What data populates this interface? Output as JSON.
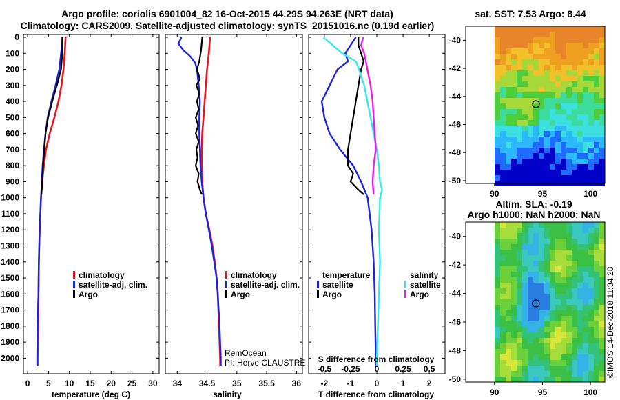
{
  "header": {
    "line1": "Argo profile: coriolis 6901004_82 16-Oct-2015 44.29S 94.263E (NRT data)",
    "line2": "Climatology: CARS2009. Satellite-adjusted climatology: synTS_20151016.nc (0.19d earlier)"
  },
  "depth_axis": {
    "ticks": [
      "0",
      "100",
      "200",
      "300",
      "400",
      "500",
      "600",
      "700",
      "800",
      "900",
      "1000",
      "1100",
      "1200",
      "1300",
      "1400",
      "1500",
      "1600",
      "1700",
      "1800",
      "1900",
      "2000"
    ],
    "ylim": [
      0,
      2080
    ]
  },
  "colors": {
    "climatology": "#e8141b",
    "satellite": "#1b24d8",
    "argo": "#000000",
    "sat_salinity": "#35e8ee",
    "argo_salinity": "#e81be8"
  },
  "chart_data": [
    {
      "id": "temperature",
      "type": "line",
      "xlabel": "temperature (deg C)",
      "xlim": [
        -1,
        31.5
      ],
      "xticks": [
        "0",
        "5",
        "10",
        "15",
        "20",
        "25",
        "30"
      ],
      "legend": [
        "climatology",
        "satellite-adj. clim.",
        "Argo"
      ],
      "series": [
        {
          "name": "climatology",
          "depth": [
            0,
            50,
            100,
            200,
            300,
            400,
            500,
            600,
            700,
            800,
            900,
            1000,
            1200,
            1400,
            1600,
            1800,
            2000,
            2050
          ],
          "values": [
            9.1,
            9.0,
            8.9,
            8.6,
            8.1,
            7.4,
            6.4,
            5.3,
            4.4,
            3.9,
            3.5,
            3.2,
            2.9,
            2.7,
            2.6,
            2.5,
            2.4,
            2.4
          ]
        },
        {
          "name": "satellite-adj. clim.",
          "depth": [
            0,
            50,
            100,
            200,
            300,
            400,
            500,
            600,
            700,
            800,
            900,
            1000,
            1200,
            1400,
            1600,
            1800,
            2000,
            2050
          ],
          "values": [
            8.3,
            8.2,
            8.0,
            7.6,
            6.7,
            5.7,
            4.8,
            4.3,
            3.9,
            3.6,
            3.4,
            3.2,
            2.9,
            2.7,
            2.6,
            2.4,
            2.3,
            2.3
          ]
        },
        {
          "name": "Argo",
          "depth": [
            0,
            50,
            100,
            200,
            300,
            400,
            500,
            600,
            700,
            800,
            900,
            980
          ],
          "values": [
            8.4,
            8.3,
            8.3,
            8.0,
            7.0,
            5.9,
            4.9,
            4.3,
            4.0,
            3.7,
            3.5,
            3.3
          ]
        }
      ]
    },
    {
      "id": "salinity",
      "type": "line",
      "xlabel": "salinity",
      "xlim": [
        33.8,
        36.1
      ],
      "xticks": [
        "34",
        "34.5",
        "35",
        "35.5",
        "36"
      ],
      "legend": [
        "climatology",
        "satellite-adj. clim.",
        "Argo"
      ],
      "series": [
        {
          "name": "climatology",
          "depth": [
            0,
            100,
            200,
            300,
            400,
            500,
            600,
            700,
            800,
            900,
            1000,
            1100,
            1200,
            1300,
            1400,
            1500,
            1600,
            1800,
            2000,
            2050
          ],
          "values": [
            34.55,
            34.53,
            34.5,
            34.48,
            34.46,
            34.44,
            34.42,
            34.41,
            34.41,
            34.42,
            34.44,
            34.48,
            34.54,
            34.59,
            34.63,
            34.66,
            34.68,
            34.7,
            34.72,
            34.72
          ]
        },
        {
          "name": "satellite-adj. clim.",
          "depth": [
            0,
            40,
            80,
            120,
            160,
            200,
            300,
            400,
            500,
            600,
            700,
            800,
            900,
            1000,
            1100,
            1200,
            1300,
            1400,
            1500,
            1600,
            1800,
            2000,
            2050
          ],
          "values": [
            34.07,
            34.02,
            34.1,
            34.22,
            34.3,
            34.33,
            34.36,
            34.38,
            34.37,
            34.37,
            34.38,
            34.39,
            34.41,
            34.44,
            34.48,
            34.53,
            34.58,
            34.62,
            34.66,
            34.68,
            34.71,
            34.73,
            34.73
          ]
        },
        {
          "name": "Argo",
          "depth": [
            0,
            80,
            150,
            200,
            260,
            300,
            350,
            400,
            450,
            500,
            550,
            600,
            650,
            700,
            750,
            800,
            850,
            900,
            950,
            980
          ],
          "values": [
            34.42,
            34.4,
            34.37,
            34.33,
            34.38,
            34.32,
            34.37,
            34.33,
            34.36,
            34.31,
            34.35,
            34.31,
            34.36,
            34.32,
            34.34,
            34.31,
            34.36,
            34.34,
            34.38,
            34.41
          ]
        }
      ]
    },
    {
      "id": "difference",
      "type": "line",
      "xlabel": "T difference from climatology",
      "xlabel_top": "S difference from climatology",
      "xlim": [
        -2.6,
        2.6
      ],
      "xticks": [
        "-2",
        "-1",
        "0",
        "1",
        "2"
      ],
      "xticks_top": [
        "-0.5",
        "-0.25",
        "0",
        "0.25",
        "0.5"
      ],
      "legend": {
        "temperature": [
          "satellite",
          "Argo"
        ],
        "salinity": [
          "satellite",
          "Argo"
        ]
      },
      "legend_titles": [
        "temperature",
        "salinity"
      ],
      "series": [
        {
          "name": "temperature satellite",
          "depth": [
            0,
            50,
            100,
            150,
            200,
            300,
            400,
            500,
            600,
            700,
            800,
            900,
            1000,
            1200,
            1400,
            1600,
            1800,
            2000,
            2050
          ],
          "values": [
            -0.8,
            -1.0,
            -1.2,
            -1.1,
            -1.5,
            -1.8,
            -2.1,
            -2.0,
            -1.8,
            -1.4,
            -0.9,
            -0.6,
            -0.35,
            -0.2,
            -0.12,
            -0.08,
            -0.06,
            -0.04,
            -0.04
          ]
        },
        {
          "name": "temperature Argo",
          "depth": [
            0,
            50,
            100,
            150,
            200,
            300,
            400,
            500,
            600,
            700,
            800,
            850,
            900,
            950,
            980
          ],
          "values": [
            -0.7,
            -0.7,
            -0.6,
            -0.5,
            -0.6,
            -0.7,
            -0.8,
            -0.9,
            -1.0,
            -1.1,
            -1.1,
            -0.9,
            -1.0,
            -0.7,
            -0.5
          ]
        },
        {
          "name": "salinity satellite",
          "depth": [
            0,
            50,
            100,
            150,
            200,
            300,
            400,
            500,
            600,
            700,
            800,
            900,
            950,
            1000,
            1200,
            1400,
            1600,
            1800,
            2000,
            2050
          ],
          "values": [
            -0.51,
            -0.42,
            -0.33,
            -0.2,
            -0.17,
            -0.12,
            -0.09,
            -0.06,
            -0.03,
            0.0,
            0.02,
            0.03,
            0.05,
            0.03,
            0.02,
            0.03,
            0.02,
            0.01,
            0.0,
            0.0
          ]
        },
        {
          "name": "salinity Argo",
          "depth": [
            0,
            50,
            100,
            200,
            300,
            400,
            500,
            600,
            700,
            800,
            900,
            980
          ],
          "values": [
            -0.13,
            -0.15,
            -0.12,
            -0.09,
            -0.06,
            -0.04,
            -0.03,
            -0.02,
            -0.01,
            -0.03,
            -0.04,
            -0.03
          ]
        }
      ]
    }
  ],
  "sst_map": {
    "title": "sat. SST: 7.53 Argo: 8.44",
    "yticks": [
      "-40",
      "-42",
      "-44",
      "-46",
      "-48",
      "-50"
    ],
    "xticks": [
      "90",
      "95",
      "100"
    ],
    "marker": {
      "lon": 94.263,
      "lat": -44.29
    }
  },
  "sla_map": {
    "title1": "Altim. SLA: -0.19",
    "title2": "Argo h1000: NaN h2000: NaN",
    "yticks": [
      "-40",
      "-42",
      "-44",
      "-46",
      "-48",
      "-50"
    ],
    "xticks": [
      "90",
      "95",
      "100"
    ],
    "marker": {
      "lon": 94.263,
      "lat": -44.29
    }
  },
  "credits": {
    "remocean": "RemOcean",
    "pi": "PI: Herve CLAUSTRE",
    "imos": "©IMOS 14-Dec-2018 11:34:28"
  }
}
